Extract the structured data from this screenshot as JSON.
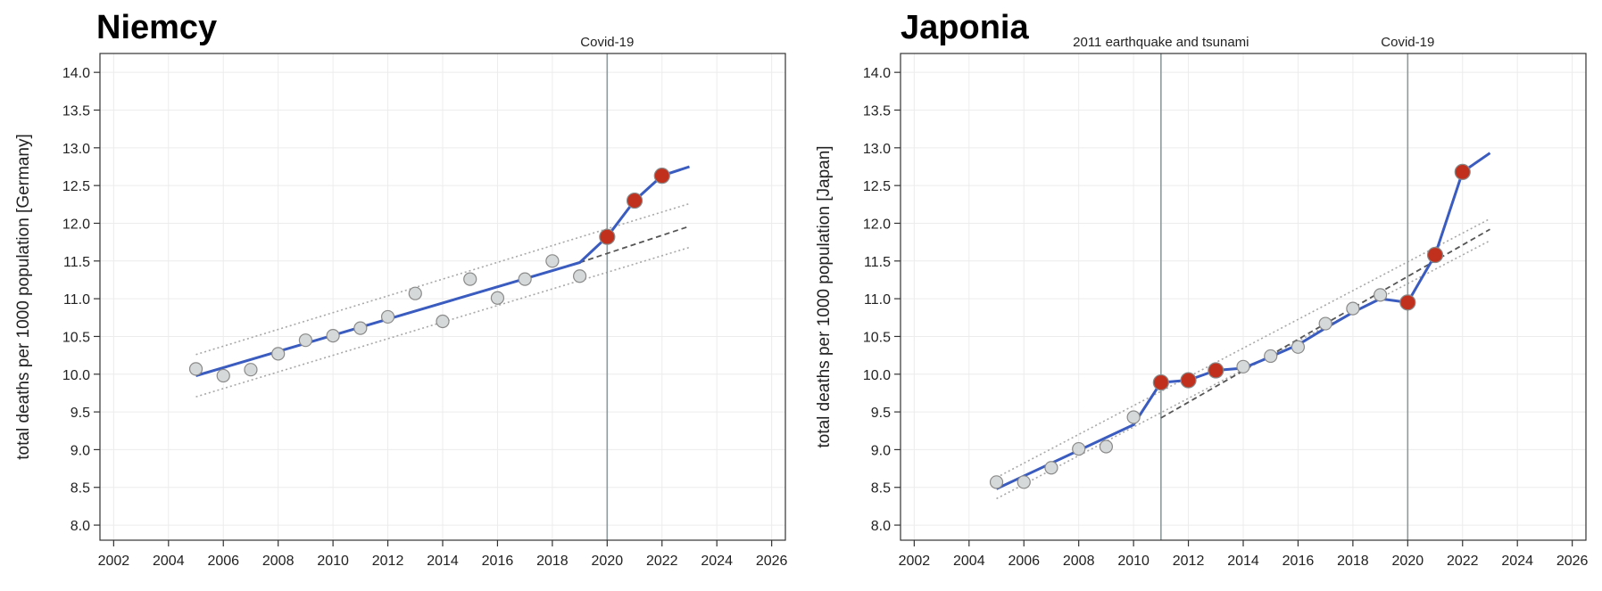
{
  "chart_data": [
    {
      "type": "line",
      "title": "Niemcy",
      "xlabel": "",
      "ylabel": "total deaths per 1000 population [Germany]",
      "xlim": [
        2001.5,
        2026.5
      ],
      "ylim": [
        7.8,
        14.25
      ],
      "xticks": [
        2002,
        2004,
        2006,
        2008,
        2010,
        2012,
        2014,
        2016,
        2018,
        2020,
        2022,
        2024,
        2026
      ],
      "yticks": [
        8.0,
        8.5,
        9.0,
        9.5,
        10.0,
        10.5,
        11.0,
        11.5,
        12.0,
        12.5,
        13.0,
        13.5,
        14.0
      ],
      "grid": true,
      "vlines": [
        {
          "x": 2020,
          "label": "Covid-19"
        }
      ],
      "points_observed": {
        "x": [
          2005,
          2006,
          2007,
          2008,
          2009,
          2010,
          2011,
          2012,
          2013,
          2014,
          2015,
          2016,
          2017,
          2018,
          2019
        ],
        "y": [
          10.07,
          9.98,
          10.06,
          10.27,
          10.45,
          10.51,
          10.61,
          10.76,
          11.07,
          10.7,
          11.26,
          11.01,
          11.26,
          11.5,
          11.3
        ]
      },
      "points_excess": {
        "x": [
          2020,
          2021,
          2022
        ],
        "y": [
          11.82,
          12.3,
          12.63
        ]
      },
      "fit_line": {
        "x": [
          2005,
          2019,
          2020,
          2021,
          2022,
          2023
        ],
        "y": [
          9.98,
          11.48,
          11.82,
          12.3,
          12.63,
          12.75
        ]
      },
      "baseline_projection": {
        "x": [
          2019,
          2023
        ],
        "y": [
          11.48,
          11.96
        ]
      },
      "band_upper": {
        "x": [
          2005,
          2023
        ],
        "y": [
          10.26,
          12.26
        ]
      },
      "band_lower": {
        "x": [
          2005,
          2023
        ],
        "y": [
          9.7,
          11.68
        ]
      }
    },
    {
      "type": "line",
      "title": "Japonia",
      "xlabel": "",
      "ylabel": "total deaths per 1000 population [Japan]",
      "xlim": [
        2001.5,
        2026.5
      ],
      "ylim": [
        7.8,
        14.25
      ],
      "xticks": [
        2002,
        2004,
        2006,
        2008,
        2010,
        2012,
        2014,
        2016,
        2018,
        2020,
        2022,
        2024,
        2026
      ],
      "yticks": [
        8.0,
        8.5,
        9.0,
        9.5,
        10.0,
        10.5,
        11.0,
        11.5,
        12.0,
        12.5,
        13.0,
        13.5,
        14.0
      ],
      "grid": true,
      "vlines": [
        {
          "x": 2011,
          "label": "2011 earthquake and tsunami"
        },
        {
          "x": 2020,
          "label": "Covid-19"
        }
      ],
      "points_observed": {
        "x": [
          2005,
          2006,
          2007,
          2008,
          2009,
          2010,
          2014,
          2015,
          2016,
          2017,
          2018,
          2019
        ],
        "y": [
          8.57,
          8.57,
          8.76,
          9.01,
          9.04,
          9.43,
          10.1,
          10.24,
          10.36,
          10.67,
          10.87,
          11.05
        ]
      },
      "points_excess": {
        "x": [
          2011,
          2012,
          2013,
          2020,
          2021,
          2022
        ],
        "y": [
          9.89,
          9.92,
          10.05,
          10.95,
          11.58,
          12.68
        ]
      },
      "fit_line": {
        "x": [
          2005,
          2010,
          2011,
          2012,
          2013,
          2014,
          2015,
          2016,
          2017,
          2018,
          2019,
          2020,
          2021,
          2022,
          2023
        ],
        "y": [
          8.48,
          9.33,
          9.89,
          9.92,
          10.05,
          10.08,
          10.23,
          10.39,
          10.61,
          10.82,
          11.0,
          10.95,
          11.58,
          12.68,
          12.93
        ]
      },
      "baseline_projection": {
        "x": [
          2011,
          2023
        ],
        "y": [
          9.42,
          11.92
        ]
      },
      "band_upper": {
        "x": [
          2005,
          2023
        ],
        "y": [
          8.63,
          12.06
        ]
      },
      "band_lower": {
        "x": [
          2005,
          2023
        ],
        "y": [
          8.35,
          11.77
        ]
      }
    }
  ]
}
